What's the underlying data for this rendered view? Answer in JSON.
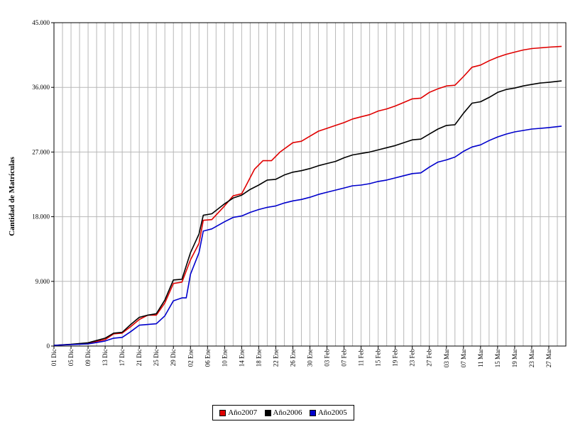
{
  "chart_data": {
    "type": "line",
    "title": "",
    "xlabel": "",
    "ylabel": "Cantidad de Matrículas",
    "ylim": [
      0,
      45000
    ],
    "y_ticks": [
      0,
      9000,
      18000,
      27000,
      36000,
      45000
    ],
    "y_tick_labels": [
      "0",
      "9.000",
      "18.000",
      "27.000",
      "36.000",
      "45.000"
    ],
    "x_tick_labels": [
      "01 Dic",
      "05 Dic",
      "09 Dic",
      "13 Dic",
      "17 Dic",
      "21 Dic",
      "25 Dic",
      "29 Dic",
      "02 Ene",
      "06 Ene",
      "10 Ene",
      "14 Ene",
      "18 Ene",
      "22 Ene",
      "26 Ene",
      "30 Ene",
      "03 Feb",
      "07 Feb",
      "11 Feb",
      "15 Feb",
      "19 Feb",
      "23 Feb",
      "27 Feb",
      "03 Mar",
      "07 Mar",
      "11 Mar",
      "15 Mar",
      "19 Mar",
      "23 Mar",
      "27 Mar"
    ],
    "x_tick_days": [
      0,
      4,
      8,
      12,
      16,
      20,
      24,
      28,
      32,
      36,
      40,
      44,
      48,
      52,
      56,
      60,
      64,
      68,
      72,
      76,
      80,
      84,
      88,
      92,
      96,
      100,
      104,
      108,
      112,
      116
    ],
    "x_range_days": [
      0,
      120
    ],
    "grid": true,
    "legend_position": "bottom",
    "series": [
      {
        "name": "Año2007",
        "color": "#e00000",
        "points": [
          [
            0,
            100
          ],
          [
            4,
            220
          ],
          [
            8,
            380
          ],
          [
            12,
            900
          ],
          [
            14,
            1700
          ],
          [
            16,
            1800
          ],
          [
            18,
            2700
          ],
          [
            20,
            3700
          ],
          [
            22,
            4300
          ],
          [
            24,
            4300
          ],
          [
            26,
            6000
          ],
          [
            28,
            8700
          ],
          [
            30,
            8900
          ],
          [
            32,
            12000
          ],
          [
            34,
            14300
          ],
          [
            35,
            17500
          ],
          [
            37,
            17600
          ],
          [
            40,
            19500
          ],
          [
            42,
            20900
          ],
          [
            44,
            21200
          ],
          [
            45,
            22300
          ],
          [
            47,
            24600
          ],
          [
            49,
            25800
          ],
          [
            51,
            25800
          ],
          [
            53,
            27000
          ],
          [
            56,
            28300
          ],
          [
            58,
            28500
          ],
          [
            60,
            29200
          ],
          [
            62,
            29900
          ],
          [
            64,
            30300
          ],
          [
            66,
            30700
          ],
          [
            68,
            31100
          ],
          [
            70,
            31600
          ],
          [
            72,
            31900
          ],
          [
            74,
            32200
          ],
          [
            76,
            32700
          ],
          [
            78,
            33000
          ],
          [
            80,
            33400
          ],
          [
            82,
            33900
          ],
          [
            84,
            34400
          ],
          [
            86,
            34500
          ],
          [
            88,
            35300
          ],
          [
            90,
            35800
          ],
          [
            92,
            36200
          ],
          [
            94,
            36300
          ],
          [
            96,
            37500
          ],
          [
            98,
            38800
          ],
          [
            100,
            39100
          ],
          [
            102,
            39700
          ],
          [
            104,
            40200
          ],
          [
            106,
            40600
          ],
          [
            108,
            40900
          ],
          [
            110,
            41200
          ],
          [
            112,
            41400
          ],
          [
            114,
            41500
          ],
          [
            116,
            41600
          ],
          [
            119,
            41700
          ]
        ]
      },
      {
        "name": "Año2006",
        "color": "#000000",
        "points": [
          [
            0,
            100
          ],
          [
            4,
            250
          ],
          [
            8,
            450
          ],
          [
            12,
            1100
          ],
          [
            14,
            1800
          ],
          [
            16,
            1900
          ],
          [
            18,
            3000
          ],
          [
            20,
            4000
          ],
          [
            22,
            4300
          ],
          [
            24,
            4500
          ],
          [
            26,
            6400
          ],
          [
            28,
            9200
          ],
          [
            30,
            9300
          ],
          [
            32,
            13000
          ],
          [
            34,
            15600
          ],
          [
            35,
            18200
          ],
          [
            37,
            18400
          ],
          [
            40,
            19800
          ],
          [
            42,
            20600
          ],
          [
            44,
            21000
          ],
          [
            46,
            21800
          ],
          [
            48,
            22400
          ],
          [
            50,
            23100
          ],
          [
            52,
            23200
          ],
          [
            54,
            23800
          ],
          [
            56,
            24200
          ],
          [
            58,
            24400
          ],
          [
            60,
            24700
          ],
          [
            62,
            25100
          ],
          [
            64,
            25400
          ],
          [
            66,
            25700
          ],
          [
            68,
            26200
          ],
          [
            70,
            26600
          ],
          [
            72,
            26800
          ],
          [
            74,
            27000
          ],
          [
            76,
            27300
          ],
          [
            78,
            27600
          ],
          [
            80,
            27900
          ],
          [
            82,
            28300
          ],
          [
            84,
            28700
          ],
          [
            86,
            28800
          ],
          [
            88,
            29500
          ],
          [
            90,
            30200
          ],
          [
            92,
            30700
          ],
          [
            94,
            30800
          ],
          [
            96,
            32400
          ],
          [
            98,
            33800
          ],
          [
            100,
            34000
          ],
          [
            102,
            34600
          ],
          [
            104,
            35300
          ],
          [
            106,
            35700
          ],
          [
            108,
            35900
          ],
          [
            110,
            36200
          ],
          [
            112,
            36400
          ],
          [
            114,
            36600
          ],
          [
            116,
            36700
          ],
          [
            119,
            36900
          ]
        ]
      },
      {
        "name": "Año2005",
        "color": "#0000cc",
        "points": [
          [
            0,
            100
          ],
          [
            4,
            200
          ],
          [
            8,
            300
          ],
          [
            12,
            700
          ],
          [
            14,
            1100
          ],
          [
            16,
            1200
          ],
          [
            18,
            2000
          ],
          [
            20,
            2900
          ],
          [
            22,
            3000
          ],
          [
            24,
            3100
          ],
          [
            26,
            4200
          ],
          [
            28,
            6300
          ],
          [
            30,
            6700
          ],
          [
            31,
            6700
          ],
          [
            32,
            10000
          ],
          [
            34,
            13000
          ],
          [
            35,
            16000
          ],
          [
            37,
            16300
          ],
          [
            40,
            17300
          ],
          [
            42,
            17900
          ],
          [
            44,
            18100
          ],
          [
            46,
            18600
          ],
          [
            48,
            19000
          ],
          [
            50,
            19300
          ],
          [
            52,
            19500
          ],
          [
            54,
            19900
          ],
          [
            56,
            20200
          ],
          [
            58,
            20400
          ],
          [
            60,
            20700
          ],
          [
            62,
            21100
          ],
          [
            64,
            21400
          ],
          [
            66,
            21700
          ],
          [
            68,
            22000
          ],
          [
            70,
            22300
          ],
          [
            72,
            22400
          ],
          [
            74,
            22600
          ],
          [
            76,
            22900
          ],
          [
            78,
            23100
          ],
          [
            80,
            23400
          ],
          [
            82,
            23700
          ],
          [
            84,
            24000
          ],
          [
            86,
            24100
          ],
          [
            88,
            24900
          ],
          [
            90,
            25600
          ],
          [
            92,
            25900
          ],
          [
            94,
            26300
          ],
          [
            96,
            27100
          ],
          [
            98,
            27700
          ],
          [
            100,
            28000
          ],
          [
            102,
            28600
          ],
          [
            104,
            29100
          ],
          [
            106,
            29500
          ],
          [
            108,
            29800
          ],
          [
            110,
            30000
          ],
          [
            112,
            30200
          ],
          [
            114,
            30300
          ],
          [
            116,
            30400
          ],
          [
            119,
            30600
          ]
        ]
      }
    ]
  }
}
